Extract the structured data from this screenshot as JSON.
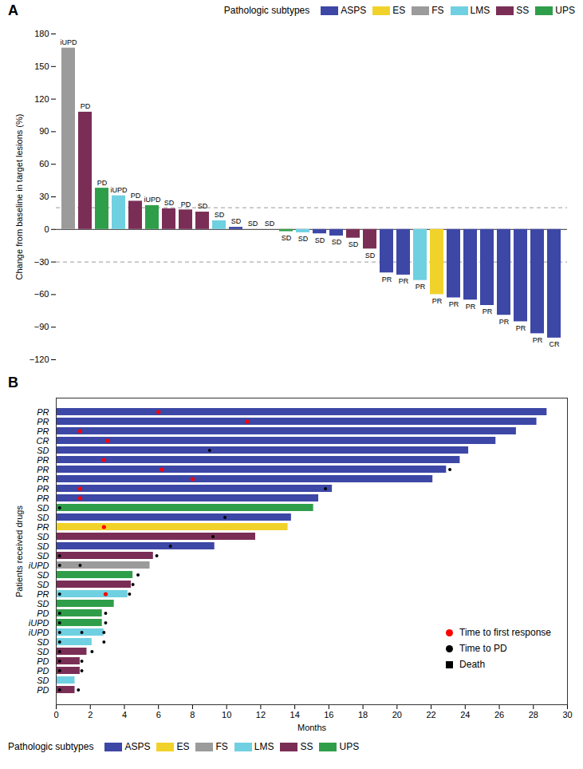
{
  "chart_data": [
    {
      "type": "bar",
      "panel": "A",
      "y_label": "Change from baseline in target lesions (%)",
      "legend_title": "Pathologic subtypes",
      "subtypes": [
        {
          "name": "ASPS",
          "color": "#3d47a6"
        },
        {
          "name": "ES",
          "color": "#f1d22b"
        },
        {
          "name": "FS",
          "color": "#9b9b9b"
        },
        {
          "name": "LMS",
          "color": "#6fd0e1"
        },
        {
          "name": "SS",
          "color": "#7a2e56"
        },
        {
          "name": "UPS",
          "color": "#2f9e4a"
        }
      ],
      "categories": [
        null,
        null,
        null,
        null,
        null,
        null,
        null,
        null,
        null,
        null,
        null,
        null,
        null,
        null,
        null,
        null,
        null,
        null,
        null,
        null,
        null,
        null,
        null,
        null,
        null,
        null,
        null,
        null,
        null,
        null
      ],
      "values": [
        167,
        108,
        38,
        31,
        26,
        22,
        19,
        18,
        16,
        8,
        2,
        0,
        0,
        -2,
        -3,
        -4,
        -6,
        -8,
        -18,
        -40,
        -42,
        -47,
        -60,
        -63,
        -65,
        -70,
        -79,
        -85,
        -96,
        -100
      ],
      "subtype": [
        "FS",
        "SS",
        "UPS",
        "LMS",
        "SS",
        "UPS",
        "SS",
        "SS",
        "SS",
        "LMS",
        "ASPS",
        "ASPS",
        "ASPS",
        "UPS",
        "LMS",
        "ASPS",
        "ASPS",
        "SS",
        "SS",
        "ASPS",
        "ASPS",
        "LMS",
        "ES",
        "ASPS",
        "ASPS",
        "ASPS",
        "ASPS",
        "ASPS",
        "ASPS",
        "ASPS"
      ],
      "bar_labels": [
        "iUPD",
        "PD",
        "PD",
        "iUPD",
        "PD",
        "iUPD",
        "SD",
        "PD",
        "SD",
        "SD",
        "SD",
        "SD",
        "SD",
        "SD",
        "SD",
        "SD",
        "SD",
        "SD",
        "SD",
        "PR",
        "PR",
        "PR",
        "PR",
        "PR",
        "PR",
        "PR",
        "PR",
        "PR",
        "PR",
        "CR"
      ],
      "reference_lines": [
        20,
        -30
      ],
      "ylim": [
        -120,
        180
      ],
      "yticks": [
        -120,
        -90,
        -60,
        -30,
        0,
        30,
        60,
        90,
        120,
        150,
        180
      ],
      "grid": false
    },
    {
      "type": "swimmer",
      "panel": "B",
      "orientation": "horizontal",
      "x_label": "Months",
      "y_label": "Patients received drugs",
      "legend_title": "Pathologic subtypes",
      "subtypes": [
        {
          "name": "ASPS",
          "color": "#3d47a6"
        },
        {
          "name": "ES",
          "color": "#f1d22b"
        },
        {
          "name": "FS",
          "color": "#9b9b9b"
        },
        {
          "name": "LMS",
          "color": "#6fd0e1"
        },
        {
          "name": "SS",
          "color": "#7a2e56"
        },
        {
          "name": "UPS",
          "color": "#2f9e4a"
        }
      ],
      "marker_legend": [
        {
          "label": "Time to first response",
          "color": "red",
          "marker": "circle"
        },
        {
          "label": "Time to PD",
          "color": "black",
          "marker": "circle"
        },
        {
          "label": "Death",
          "color": "black",
          "marker": "square"
        }
      ],
      "categories": [
        "PR",
        "PR",
        "PR",
        "CR",
        "SD",
        "PR",
        "PR",
        "PR",
        "PR",
        "PR",
        "SD",
        "SD",
        "PR",
        "SD",
        "SD",
        "SD",
        "iUPD",
        "SD",
        "SD",
        "PR",
        "SD",
        "PD",
        "iUPD",
        "iUPD",
        "SD",
        "SD",
        "PD",
        "PD",
        "SD",
        "PD"
      ],
      "values": [
        28.8,
        28.2,
        27.0,
        25.8,
        24.2,
        23.7,
        22.9,
        22.1,
        16.2,
        15.4,
        15.1,
        13.8,
        13.6,
        11.7,
        9.3,
        5.7,
        5.5,
        4.5,
        4.4,
        4.2,
        3.4,
        2.7,
        2.7,
        2.8,
        2.1,
        1.8,
        1.4,
        1.4,
        1.1,
        1.1
      ],
      "subtype": [
        "ASPS",
        "ASPS",
        "ASPS",
        "ASPS",
        "ASPS",
        "ASPS",
        "ASPS",
        "ASPS",
        "ASPS",
        "ASPS",
        "UPS",
        "ASPS",
        "ES",
        "SS",
        "ASPS",
        "SS",
        "FS",
        "UPS",
        "SS",
        "LMS",
        "UPS",
        "UPS",
        "UPS",
        "LMS",
        "LMS",
        "SS",
        "SS",
        "SS",
        "LMS",
        "SS"
      ],
      "response_times": [
        [
          6.0
        ],
        [
          11.2
        ],
        [
          1.4
        ],
        [
          3.0
        ],
        [],
        [
          2.8
        ],
        [
          6.2
        ],
        [
          8.0
        ],
        [
          1.4
        ],
        [
          1.4
        ],
        [],
        [],
        [
          2.8
        ],
        [],
        [],
        [],
        [],
        [],
        [],
        [
          2.9
        ],
        [],
        [],
        [],
        [],
        [],
        [],
        [],
        [],
        [],
        []
      ],
      "pd_times": [
        [],
        [],
        [],
        [],
        [
          9.0
        ],
        [],
        [
          23.1
        ],
        [],
        [
          15.8
        ],
        [],
        [
          0.2
        ],
        [
          9.9
        ],
        [],
        [
          9.2
        ],
        [
          6.7
        ],
        [
          0.2,
          5.9
        ],
        [
          0.2,
          1.4
        ],
        [
          4.8
        ],
        [
          4.5
        ],
        [
          0.2,
          4.3
        ],
        [],
        [
          0.2,
          2.9
        ],
        [
          0.2,
          2.9
        ],
        [
          0.2,
          1.5,
          2.8
        ],
        [
          0.2,
          2.8
        ],
        [
          0.2,
          2.1
        ],
        [
          0.2,
          1.5
        ],
        [
          0.2,
          1.5
        ],
        [],
        [
          0.2,
          1.3
        ]
      ],
      "xlim": [
        0,
        30
      ],
      "xticks": [
        0,
        2,
        4,
        6,
        8,
        10,
        12,
        14,
        16,
        18,
        20,
        22,
        24,
        26,
        28,
        30
      ],
      "grid": false
    }
  ]
}
